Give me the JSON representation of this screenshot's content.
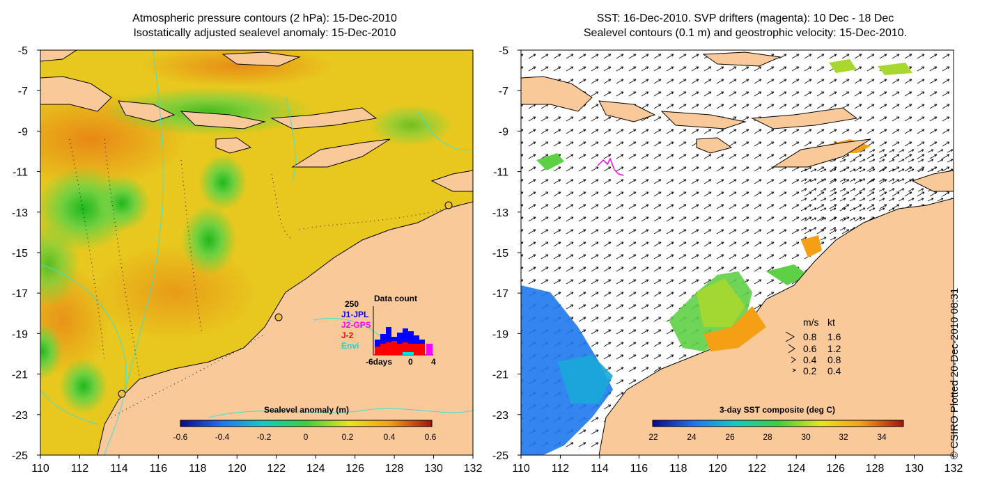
{
  "left_panel": {
    "title_line1": "Atmospheric pressure contours (2 hPa): 15-Dec-2010",
    "title_line2": "Isostatically adjusted sealevel anomaly: 15-Dec-2010",
    "colorbar_label": "Sealevel anomaly (m)",
    "colorbar_ticks": [
      "-0.6",
      "-0.4",
      "-0.2",
      "0",
      "0.2",
      "0.4",
      "0.6"
    ],
    "inset": {
      "title": "Data count",
      "max_label": "250",
      "legend": [
        {
          "label": "J1-JPL",
          "color": "#0000ff"
        },
        {
          "label": "J2-GPS",
          "color": "#ff00ff"
        },
        {
          "label": "J-2",
          "color": "#ff0000"
        },
        {
          "label": "Envi",
          "color": "#00e0e0"
        }
      ],
      "x_ticks": [
        "-6days",
        "0",
        "4"
      ]
    }
  },
  "right_panel": {
    "title_line1": "SST: 16-Dec-2010. SVP drifters (magenta): 10 Dec - 18 Dec",
    "title_line2": "Sealevel contours (0.1 m) and geostrophic velocity: 15-Dec-2010.",
    "colorbar_label": "3-day SST composite (deg C)",
    "colorbar_ticks": [
      "22",
      "24",
      "26",
      "28",
      "30",
      "32",
      "34"
    ],
    "velocity_legend": {
      "header_ms": "m/s",
      "header_kt": "kt",
      "rows": [
        {
          "ms": "0.8",
          "kt": "1.6"
        },
        {
          "ms": "0.6",
          "kt": "1.2"
        },
        {
          "ms": "0.4",
          "kt": "0.8"
        },
        {
          "ms": "0.2",
          "kt": "0.4"
        }
      ]
    }
  },
  "axes": {
    "lat_ticks": [
      "-5",
      "-7",
      "-9",
      "-11",
      "-13",
      "-15",
      "-17",
      "-19",
      "-21",
      "-23",
      "-25"
    ],
    "lon_ticks": [
      "110",
      "112",
      "114",
      "116",
      "118",
      "120",
      "122",
      "124",
      "126",
      "128",
      "130",
      "132"
    ]
  },
  "credit": "© CSIRO Plotted 20-Dec-2010 08:31",
  "colors": {
    "land": "#f9c99a",
    "ocean_base": "#e2cf1c",
    "sst_land": "#f9c99a",
    "contour": "#40e0d0",
    "drifter": "#ff00ff"
  }
}
